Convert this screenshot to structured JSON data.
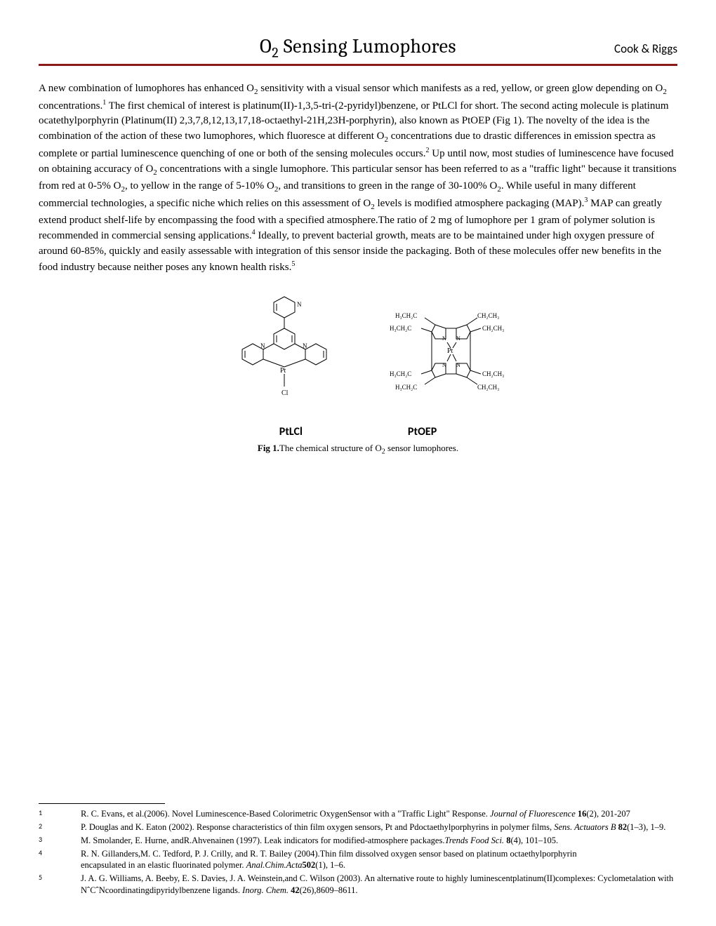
{
  "header": {
    "title_prefix": "O",
    "title_sub": "2",
    "title_suffix": " Sensing Lumophores",
    "authors": "Cook & Riggs"
  },
  "body": {
    "text_html": "A new combination of lumophores has enhanced O<sub>2</sub> sensitivity with a visual sensor which manifests as a red, yellow, or green glow depending on O<sub>2</sub> concentrations.<sup>1</sup>  The first chemical of interest is platinum(II)-1,3,5-tri-(2-pyridyl)benzene, or PtLCl for short.  The second acting molecule is platinum ocatethylporphyrin (Platinum(II) 2,3,7,8,12,13,17,18-octaethyl-21H,23H-porphyrin), also known as PtOEP (Fig 1).  The novelty of the idea is the combination of the action of these two lumophores, which fluoresce at different O<sub>2</sub> concentrations due to drastic differences in emission spectra as complete or partial luminescence quenching of one or both of the sensing molecules occurs.<sup>2</sup>  Up until now, most studies of luminescence have focused on obtaining accuracy of O<sub>2</sub> concentrations with a single lumophore.  This particular sensor has been referred to as a \"traffic light\" because it transitions from red at 0-5% O<sub>2</sub>, to yellow in the range of 5-10% O<sub>2</sub>, and transitions to green in the range of 30-100% O<sub>2</sub>.  While useful in many different commercial technologies, a specific niche which relies on this assessment of O<sub>2</sub> levels is modified atmosphere packaging (MAP).<sup>3</sup>  MAP can greatly extend product shelf-life by encompassing the food with a specified atmosphere.The ratio of 2 mg of lumophore per 1 gram of polymer solution is recommended in commercial sensing applications.<sup>4</sup>  Ideally, to prevent bacterial growth, meats are to be maintained under high oxygen pressure of around 60-85%, quickly and easily assessable with integration of this sensor inside the packaging.  Both of these molecules offer new benefits in the food industry because neither poses any known health risks.<sup>5</sup>"
  },
  "figure": {
    "label_left": "PtLCl",
    "label_right": "PtOEP",
    "caption_html": "<b>Fig 1.</b>The chemical structure of O<sub>2</sub> sensor lumophores.",
    "molecules": {
      "ptlcl": {
        "atoms": [
          "N",
          "N",
          "N",
          "Pt",
          "Cl"
        ],
        "ring_color": "#000000",
        "line_width": 1
      },
      "ptoep": {
        "center": "Pt",
        "inner_atoms": [
          "N",
          "N",
          "N",
          "N"
        ],
        "substituents": [
          "H₃CH₂C",
          "CH₂CH₃",
          "H₃CH₂C",
          "CH₂CH₃",
          "H₃CH₂C",
          "CH₂CH₃",
          "H₃CH₂C",
          "CH₂CH₃"
        ],
        "ring_color": "#000000",
        "line_width": 1
      }
    }
  },
  "footnotes": [
    {
      "num": "1",
      "html": "R. C. Evans, et al.(2006).  Novel Luminescence-Based Colorimetric OxygenSensor with a \"Traffic Light\" Response. <em>Journal of Fluorescence</em> <b>16</b>(2), 201-207"
    },
    {
      "num": "2",
      "html": "P. Douglas and K. Eaton (2002). Response characteristics of thin film oxygen sensors, Pt and Pdoctaethylporphyrins in polymer films, <em>Sens. Actuators B</em> <b>82</b>(1–3), 1–9."
    },
    {
      "num": "3",
      "html": "M. Smolander, E. Hurne, andR.Ahvenainen (1997). Leak indicators for modified-atmosphere packages.<em>Trends Food Sci.</em> <b>8</b>(4), 101–105."
    },
    {
      "num": "4",
      "html": "R. N. Gillanders,M. C. Tedford, P. J. Crilly, and R. T. Bailey (2004).Thin film dissolved oxygen sensor based on platinum octaethylporphyrin<br>encapsulated in an elastic fluorinated polymer. <em>Anal.Chim.Acta</em><b>502</b>(1), 1–6."
    },
    {
      "num": "5",
      "html": "J. A. G. Williams, A. Beeby, E. S. Davies, J. A. Weinstein,and C. Wilson (2003). An alternative route to highly luminescentplatinum(II)complexes: Cyclometalation with NˆCˆNcoordinatingdipyridylbenzene ligands. <em>Inorg. Chem.</em> <b>42</b>(26),8609–8611."
    }
  ],
  "styling": {
    "rule_color": "#8b1a1a",
    "background": "#ffffff",
    "body_font_size": 15,
    "title_font_size": 28
  }
}
